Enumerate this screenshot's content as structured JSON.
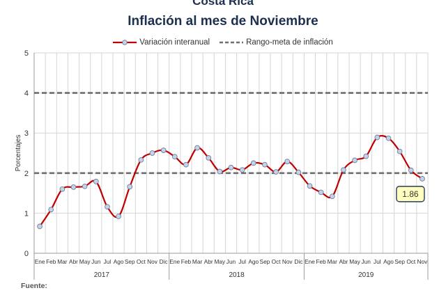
{
  "header": {
    "title_top": "Costa Rica",
    "title": "Inflación al mes de Noviembre"
  },
  "footer": {
    "source_label": "Fuente:"
  },
  "chart_data": {
    "type": "line",
    "title": "Inflación al mes de Noviembre",
    "ylabel": "Porcentajes",
    "ylim": [
      0,
      5
    ],
    "yticks": [
      0,
      1,
      2,
      3,
      4,
      5
    ],
    "grid": true,
    "legend_position": "top",
    "categories": [
      "Ene",
      "Feb",
      "Mar",
      "Abr",
      "May",
      "Jun",
      "Jul",
      "Ago",
      "Sep",
      "Oct",
      "Nov",
      "Dic",
      "Ene",
      "Feb",
      "Mar",
      "Abr",
      "May",
      "Jun",
      "Jul",
      "Ago",
      "Sep",
      "Oct",
      "Nov",
      "Dic",
      "Ene",
      "Feb",
      "Mar",
      "Abr",
      "May",
      "Jun",
      "Jul",
      "Ago",
      "Sep",
      "Oct",
      "Nov"
    ],
    "years": [
      {
        "label": "2017",
        "start": 0,
        "end": 11
      },
      {
        "label": "2018",
        "start": 12,
        "end": 23
      },
      {
        "label": "2019",
        "start": 24,
        "end": 34
      }
    ],
    "series": [
      {
        "name": "Variación interanual",
        "color": "#c00000",
        "marker_fill": "#c5d3ea",
        "values": [
          0.67,
          1.09,
          1.6,
          1.65,
          1.67,
          1.79,
          1.16,
          0.92,
          1.66,
          2.33,
          2.5,
          2.57,
          2.41,
          2.21,
          2.63,
          2.38,
          2.04,
          2.14,
          2.08,
          2.25,
          2.21,
          2.03,
          2.29,
          2.02,
          1.68,
          1.52,
          1.42,
          2.08,
          2.32,
          2.42,
          2.89,
          2.87,
          2.54,
          2.07,
          1.86
        ]
      },
      {
        "name": "Rango-meta de inflación",
        "color": "#6e6e6e",
        "style": "dashed",
        "hlines": [
          2,
          4
        ]
      }
    ],
    "annotation": {
      "text": "1.86",
      "index": 34
    }
  }
}
